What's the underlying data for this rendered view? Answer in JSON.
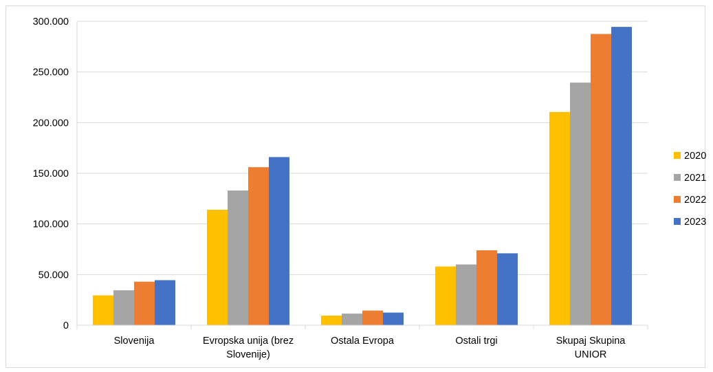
{
  "chart_data": {
    "type": "bar",
    "categories": [
      [
        "Slovenija"
      ],
      [
        "Evropska unija (brez",
        "Slovenije)"
      ],
      [
        "Ostala Evropa"
      ],
      [
        "Ostali trgi"
      ],
      [
        "Skupaj Skupina",
        "UNIOR"
      ]
    ],
    "series": [
      {
        "name": "2020",
        "color": "#ffc000",
        "values": [
          29500,
          114000,
          9500,
          58000,
          210500
        ]
      },
      {
        "name": "2021",
        "color": "#a5a5a5",
        "values": [
          34500,
          133000,
          11500,
          60000,
          239500
        ]
      },
      {
        "name": "2022",
        "color": "#ed7d31",
        "values": [
          43000,
          156000,
          14500,
          74000,
          287500
        ]
      },
      {
        "name": "2023",
        "color": "#4472c4",
        "values": [
          44500,
          166000,
          12500,
          71000,
          294500
        ]
      }
    ],
    "yticks": [
      "0",
      "50.000",
      "100.000",
      "150.000",
      "200.000",
      "250.000",
      "300.000"
    ],
    "ylim": [
      0,
      300000
    ],
    "grid": true,
    "legend_position": "right"
  }
}
